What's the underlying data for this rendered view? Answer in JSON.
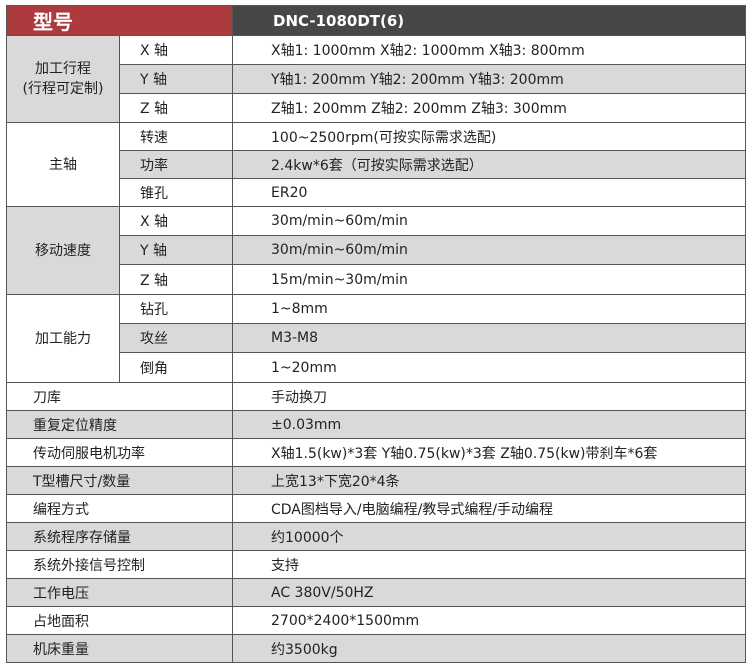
{
  "header": {
    "label": "型号",
    "model": "DNC-1080DT(6)"
  },
  "colors": {
    "header_red": "#ad3b3d",
    "header_dark": "#474747",
    "row_gray": "#d9d9d9"
  },
  "groups": [
    {
      "label": "加工行程\n(行程可定制)",
      "label1": "加工行程",
      "label2": "(行程可定制)",
      "rows": [
        {
          "sub": "X 轴",
          "value": "X轴1:  1000mm  X轴2:  1000mm   X轴3:  800mm"
        },
        {
          "sub": "Y 轴",
          "value": "Y轴1:  200mm  Y轴2:  200mm   Y轴3:  200mm"
        },
        {
          "sub": "Z 轴",
          "value": "Z轴1:  200mm  Z轴2:  200mm   Z轴3:  300mm"
        }
      ]
    },
    {
      "label1": "主轴",
      "rows": [
        {
          "sub": "转速",
          "value": "100~2500rpm(可按实际需求选配)"
        },
        {
          "sub": "功率",
          "value": "2.4kw*6套（可按实际需求选配）"
        },
        {
          "sub": "锥孔",
          "value": "ER20"
        }
      ]
    },
    {
      "label1": "移动速度",
      "rows": [
        {
          "sub": "X 轴",
          "value": "30m/min~60m/min"
        },
        {
          "sub": "Y 轴",
          "value": "30m/min~60m/min"
        },
        {
          "sub": "Z 轴",
          "value": "15m/min~30m/min"
        }
      ]
    },
    {
      "label1": "加工能力",
      "rows": [
        {
          "sub": "钻孔",
          "value": "1~8mm"
        },
        {
          "sub": "攻丝",
          "value": "M3-M8"
        },
        {
          "sub": "倒角",
          "value": "1~20mm"
        }
      ]
    }
  ],
  "rows": [
    {
      "label": "刀库",
      "value": "手动换刀"
    },
    {
      "label": "重复定位精度",
      "value": "±0.03mm"
    },
    {
      "label": "传动伺服电机功率",
      "value": "X轴1.5(kw)*3套   Y轴0.75(kw)*3套   Z轴0.75(kw)带刹车*6套"
    },
    {
      "label": "T型槽尺寸/数量",
      "value": "上宽13*下宽20*4条"
    },
    {
      "label": "编程方式",
      "value": "CDA图档导入/电脑编程/教导式编程/手动编程"
    },
    {
      "label": "系统程序存储量",
      "value": "约10000个"
    },
    {
      "label": "系统外接信号控制",
      "value": "支持"
    },
    {
      "label": "工作电压",
      "value": "AC 380V/50HZ"
    },
    {
      "label": "占地面积",
      "value": "2700*2400*1500mm"
    },
    {
      "label": "机床重量",
      "value": "约3500kg"
    }
  ]
}
